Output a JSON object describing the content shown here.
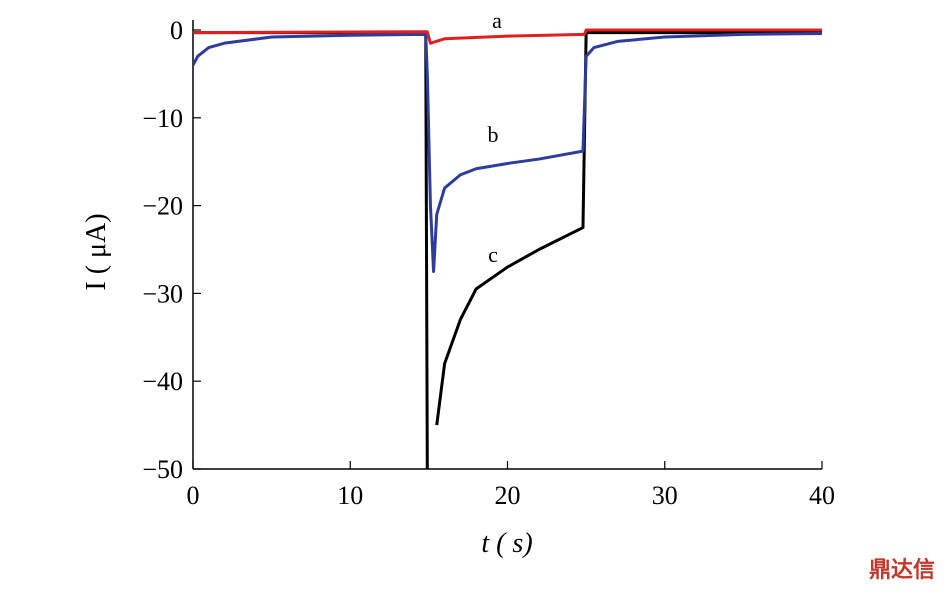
{
  "chart_data": {
    "type": "line",
    "xlabel": "t ( s)",
    "ylabel": "I ( μA)",
    "xlim": [
      0,
      40
    ],
    "ylim": [
      -50,
      0
    ],
    "xticks": [
      0,
      10,
      20,
      30,
      40
    ],
    "yticks": [
      {
        "value": -50,
        "label": "−50"
      },
      {
        "value": -40,
        "label": "−40"
      },
      {
        "value": -30,
        "label": "−30"
      },
      {
        "value": -20,
        "label": "−20"
      },
      {
        "value": -10,
        "label": "−10"
      },
      0
    ],
    "annotations": [
      "a",
      "b",
      "c"
    ],
    "watermark": "鼎达信",
    "series": [
      {
        "color": "#000000",
        "x": [
          0,
          14.8,
          14.9,
          15.3,
          15.5,
          16,
          17,
          18,
          20,
          22,
          24.8,
          25,
          40
        ],
        "values": [
          -0.3,
          -0.3,
          -50,
          null,
          -45,
          -38,
          -33,
          -29.5,
          -27,
          -25,
          -22.5,
          -0.3,
          -0.3
        ]
      },
      {
        "color": "#2e3c9c",
        "x": [
          0,
          0.3,
          1,
          2,
          5,
          10,
          14.8,
          14.9,
          15.1,
          15.3,
          15.5,
          16,
          17,
          18,
          20,
          22,
          24.8,
          25,
          25.5,
          27,
          30,
          35,
          40
        ],
        "values": [
          -4,
          -3,
          -2,
          -1.5,
          -0.8,
          -0.6,
          -0.5,
          -5,
          -20,
          -27.5,
          -21,
          -18,
          -16.5,
          -15.8,
          -15.2,
          -14.7,
          -13.8,
          -3,
          -2,
          -1.3,
          -0.8,
          -0.5,
          -0.4
        ]
      },
      {
        "color": "#e02020",
        "x": [
          0,
          14.9,
          15.1,
          16,
          20,
          24.9,
          25,
          40
        ],
        "values": [
          -0.3,
          -0.2,
          -1.5,
          -1,
          -0.7,
          -0.5,
          0,
          0
        ]
      }
    ]
  }
}
